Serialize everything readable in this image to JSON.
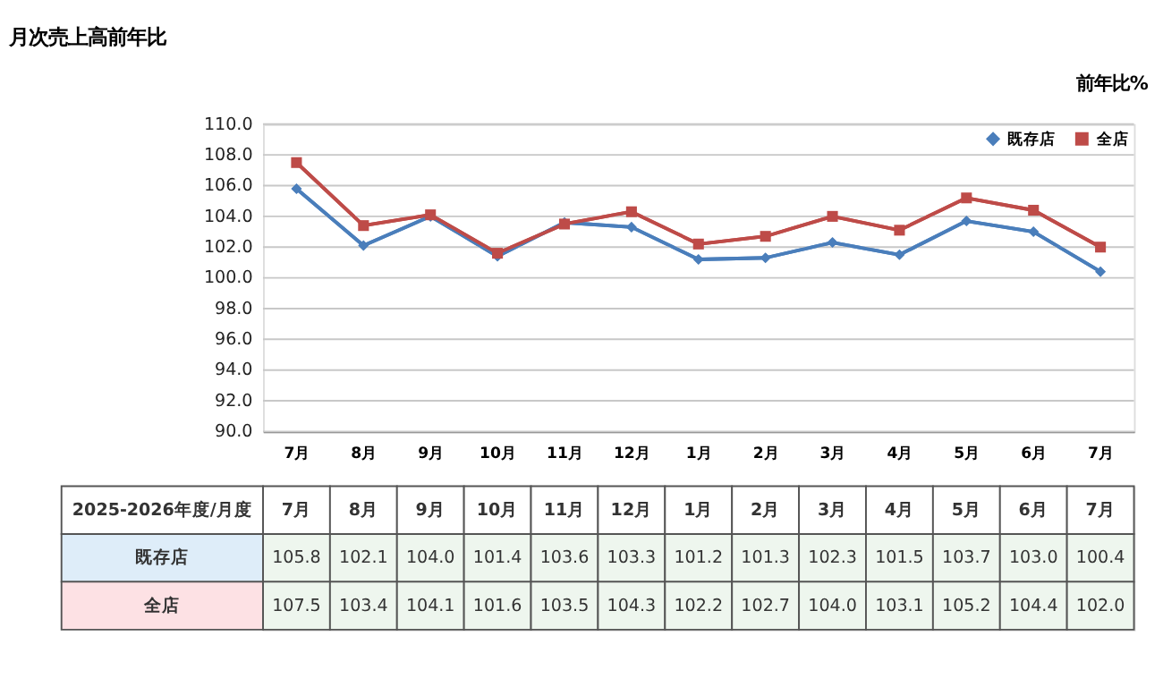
{
  "chart_data": {
    "type": "line",
    "title": "月次売上高前年比",
    "ylabel": "前年比%",
    "categories": [
      "7月",
      "8月",
      "9月",
      "10月",
      "11月",
      "12月",
      "1月",
      "2月",
      "3月",
      "4月",
      "5月",
      "6月",
      "7月"
    ],
    "series": [
      {
        "name": "既存店",
        "color": "#4a7ebb",
        "marker": "diamond",
        "values": [
          105.8,
          102.1,
          104.0,
          101.4,
          103.6,
          103.3,
          101.2,
          101.3,
          102.3,
          101.5,
          103.7,
          103.0,
          100.4
        ],
        "value_labels": [
          "105.8",
          "102.1",
          "104.0",
          "101.4",
          "103.6",
          "103.3",
          "101.2",
          "101.3",
          "102.3",
          "101.5",
          "103.7",
          "103.0",
          "100.4"
        ]
      },
      {
        "name": "全店",
        "color": "#be4b48",
        "marker": "square",
        "values": [
          107.5,
          103.4,
          104.1,
          101.6,
          103.5,
          104.3,
          102.2,
          102.7,
          104.0,
          103.1,
          105.2,
          104.4,
          102.0
        ],
        "value_labels": [
          "107.5",
          "103.4",
          "104.1",
          "101.6",
          "103.5",
          "104.3",
          "102.2",
          "102.7",
          "104.0",
          "103.1",
          "105.2",
          "104.4",
          "102.0"
        ]
      }
    ],
    "ylim": [
      90,
      110
    ],
    "yticks": [
      {
        "value": 90,
        "label": "90.0"
      },
      {
        "value": 92,
        "label": "92.0"
      },
      {
        "value": 94,
        "label": "94.0"
      },
      {
        "value": 96,
        "label": "96.0"
      },
      {
        "value": 98,
        "label": "98.0"
      },
      {
        "value": 100,
        "label": "100.0"
      },
      {
        "value": 102,
        "label": "102.0"
      },
      {
        "value": 104,
        "label": "104.0"
      },
      {
        "value": 106,
        "label": "106.0"
      },
      {
        "value": 108,
        "label": "108.0"
      },
      {
        "value": 110,
        "label": "110.0"
      }
    ],
    "grid": "y",
    "legend": "top right",
    "line_style": "solid",
    "annotations": [
      "2025-2026年度/月度"
    ]
  }
}
